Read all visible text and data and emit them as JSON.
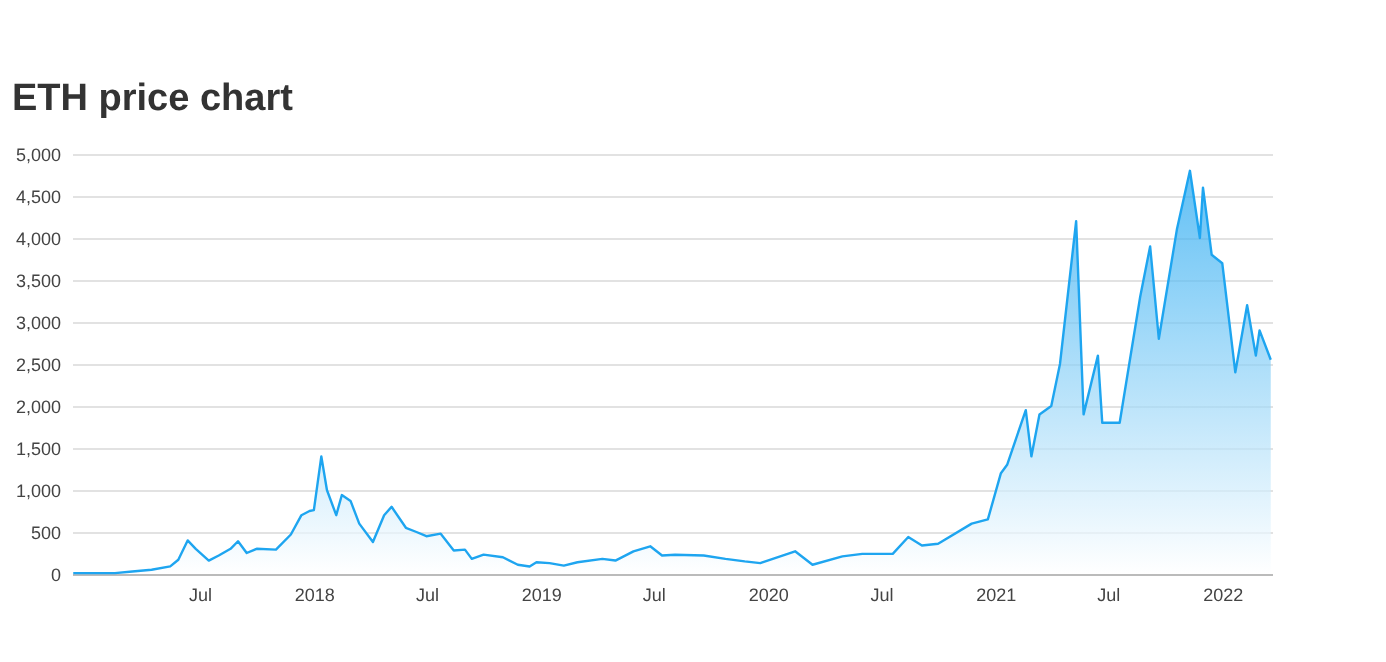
{
  "chart_data": {
    "type": "area",
    "title": "ETH price chart",
    "x": [
      "2016-12-10",
      "2017-01-15",
      "2017-02-15",
      "2017-03-15",
      "2017-04-15",
      "2017-05-15",
      "2017-05-28",
      "2017-06-12",
      "2017-06-25",
      "2017-07-16",
      "2017-08-01",
      "2017-08-20",
      "2017-09-01",
      "2017-09-15",
      "2017-10-01",
      "2017-11-01",
      "2017-11-25",
      "2017-12-12",
      "2017-12-25",
      "2018-01-01",
      "2018-01-13",
      "2018-01-22",
      "2018-02-06",
      "2018-02-15",
      "2018-03-01",
      "2018-03-15",
      "2018-04-06",
      "2018-04-24",
      "2018-05-06",
      "2018-05-29",
      "2018-06-15",
      "2018-07-01",
      "2018-07-24",
      "2018-08-14",
      "2018-09-01",
      "2018-09-12",
      "2018-10-01",
      "2018-11-01",
      "2018-11-25",
      "2018-12-14",
      "2018-12-25",
      "2019-01-15",
      "2019-02-07",
      "2019-03-01",
      "2019-04-10",
      "2019-05-01",
      "2019-05-30",
      "2019-06-26",
      "2019-07-15",
      "2019-08-05",
      "2019-09-20",
      "2019-10-25",
      "2019-11-25",
      "2019-12-20",
      "2020-02-14",
      "2020-03-13",
      "2020-04-30",
      "2020-06-01",
      "2020-07-20",
      "2020-08-14",
      "2020-09-05",
      "2020-10-01",
      "2020-11-24",
      "2020-12-20",
      "2021-01-10",
      "2021-01-20",
      "2021-02-19",
      "2021-02-28",
      "2021-03-13",
      "2021-04-01",
      "2021-04-15",
      "2021-05-11",
      "2021-05-23",
      "2021-06-15",
      "2021-06-22",
      "2021-07-20",
      "2021-08-22",
      "2021-09-07",
      "2021-09-21",
      "2021-10-20",
      "2021-11-10",
      "2021-11-26",
      "2021-12-01",
      "2021-12-15",
      "2022-01-01",
      "2022-01-22",
      "2022-02-10",
      "2022-02-24",
      "2022-03-02",
      "2022-03-20"
    ],
    "series": [
      {
        "color": "#1ea5f0",
        "values": [
          10,
          10,
          10,
          30,
          50,
          90,
          170,
          400,
          300,
          160,
          220,
          300,
          390,
          250,
          300,
          290,
          470,
          700,
          750,
          760,
          1400,
          1000,
          700,
          940,
          870,
          600,
          380,
          700,
          800,
          550,
          500,
          450,
          480,
          280,
          290,
          180,
          230,
          200,
          110,
          90,
          140,
          130,
          100,
          140,
          180,
          160,
          270,
          330,
          220,
          230,
          220,
          180,
          150,
          130,
          270,
          110,
          210,
          240,
          240,
          440,
          340,
          360,
          600,
          650,
          1200,
          1300,
          1950,
          1400,
          1900,
          2000,
          2500,
          4200,
          1900,
          2600,
          1800,
          1800,
          3300,
          3900,
          2800,
          4100,
          4800,
          4000,
          4600,
          3800,
          3700,
          2400,
          3200,
          2600,
          2900,
          2550
        ]
      }
    ],
    "xlim": [
      "2016-12-08",
      "2022-03-22"
    ],
    "xticks": [
      {
        "value": "2017-07-01",
        "label": "Jul"
      },
      {
        "value": "2018-01-01",
        "label": "2018"
      },
      {
        "value": "2018-07-01",
        "label": "Jul"
      },
      {
        "value": "2019-01-01",
        "label": "2019"
      },
      {
        "value": "2019-07-01",
        "label": "Jul"
      },
      {
        "value": "2020-01-01",
        "label": "2020"
      },
      {
        "value": "2020-07-01",
        "label": "Jul"
      },
      {
        "value": "2021-01-01",
        "label": "2021"
      },
      {
        "value": "2021-07-01",
        "label": "Jul"
      },
      {
        "value": "2022-01-01",
        "label": "2022"
      }
    ],
    "ylim": [
      0,
      5000
    ],
    "yticks": [
      {
        "value": 0,
        "label": "0"
      },
      {
        "value": 500,
        "label": "500"
      },
      {
        "value": 1000,
        "label": "1,000"
      },
      {
        "value": 1500,
        "label": "1,500"
      },
      {
        "value": 2000,
        "label": "2,000"
      },
      {
        "value": 2500,
        "label": "2,500"
      },
      {
        "value": 3000,
        "label": "3,000"
      },
      {
        "value": 3500,
        "label": "3,500"
      },
      {
        "value": 4000,
        "label": "4,000"
      },
      {
        "value": 4500,
        "label": "4,500"
      },
      {
        "value": 5000,
        "label": "5,000"
      }
    ],
    "grid": "y"
  }
}
